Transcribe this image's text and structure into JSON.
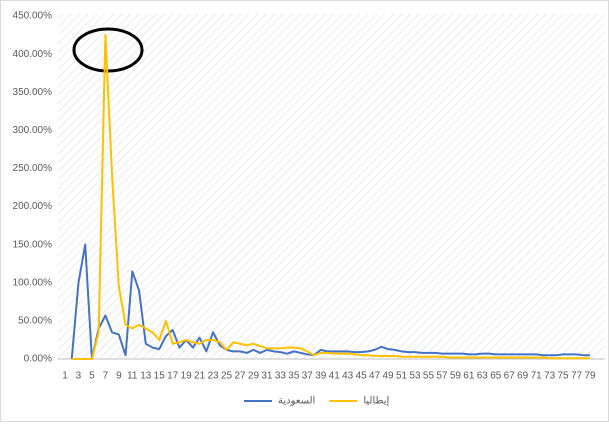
{
  "chart_data": {
    "type": "line",
    "categories": [
      1,
      null,
      3,
      null,
      5,
      null,
      7,
      null,
      9,
      null,
      11,
      null,
      13,
      null,
      15,
      null,
      17,
      null,
      19,
      null,
      21,
      null,
      23,
      null,
      25,
      null,
      27,
      null,
      29,
      null,
      31,
      null,
      33,
      null,
      35,
      null,
      37,
      null,
      39,
      null,
      41,
      null,
      43,
      null,
      45,
      null,
      47,
      null,
      49,
      null,
      51,
      null,
      53,
      null,
      55,
      null,
      57,
      null,
      59,
      null,
      61,
      null,
      63,
      null,
      65,
      null,
      67,
      null,
      69,
      null,
      71,
      null,
      73,
      null,
      75,
      null,
      77,
      null,
      79
    ],
    "series": [
      {
        "name": "السعودية",
        "color": "#4472c4",
        "values": [
          null,
          0,
          100,
          150,
          0,
          40,
          57,
          35,
          32,
          5,
          115,
          90,
          20,
          15,
          13,
          30,
          38,
          15,
          25,
          15,
          28,
          10,
          35,
          18,
          12,
          10,
          10,
          8,
          12,
          8,
          12,
          10,
          9,
          7,
          10,
          8,
          6,
          5,
          12,
          10,
          10,
          10,
          10,
          9,
          9,
          10,
          12,
          16,
          13,
          12,
          10,
          9,
          9,
          8,
          8,
          8,
          7,
          7,
          7,
          7,
          6,
          6,
          7,
          7,
          6,
          6,
          6,
          6,
          6,
          6,
          6,
          5,
          5,
          5,
          6,
          6,
          6,
          5,
          5
        ]
      },
      {
        "name": "إيطاليا",
        "color": "#ffc000",
        "values": [
          null,
          0,
          0,
          0,
          0,
          35,
          425,
          240,
          95,
          45,
          40,
          45,
          40,
          35,
          25,
          50,
          20,
          22,
          25,
          22,
          20,
          25,
          25,
          22,
          12,
          22,
          20,
          18,
          20,
          17,
          14,
          14,
          14,
          15,
          15,
          14,
          10,
          5,
          8,
          8,
          7,
          7,
          7,
          6,
          5,
          5,
          4,
          4,
          4,
          4,
          3,
          3,
          3,
          3,
          3,
          3,
          3,
          2,
          2,
          2,
          2,
          2,
          2,
          2,
          2,
          2,
          2,
          2,
          2,
          2,
          2,
          2,
          1,
          1,
          1,
          1,
          1,
          1,
          1
        ]
      }
    ],
    "ylim": [
      0,
      450
    ],
    "yticks": [
      {
        "value": 0,
        "label": "0.00%"
      },
      {
        "value": 50,
        "label": "50.00%"
      },
      {
        "value": 100,
        "label": "100.00%"
      },
      {
        "value": 150,
        "label": "150.00%"
      },
      {
        "value": 200,
        "label": "200.00%"
      },
      {
        "value": 250,
        "label": "250.00%"
      },
      {
        "value": 300,
        "label": "300.00%"
      },
      {
        "value": 350,
        "label": "350.00%"
      },
      {
        "value": 400,
        "label": "400.00%"
      },
      {
        "value": 450,
        "label": "450.00%"
      }
    ],
    "legend": "bottom"
  }
}
